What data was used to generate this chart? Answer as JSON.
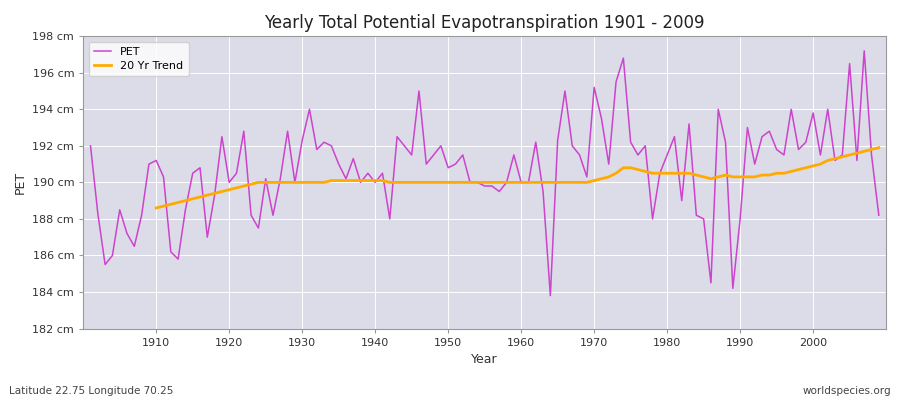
{
  "title": "Yearly Total Potential Evapotranspiration 1901 - 2009",
  "ylabel": "PET",
  "xlabel": "Year",
  "lat_lon_label": "Latitude 22.75 Longitude 70.25",
  "source_label": "worldspecies.org",
  "pet_color": "#cc44cc",
  "trend_color": "#ffaa00",
  "bg_color": "#dcdce8",
  "fig_bg_color": "#ffffff",
  "ylim": [
    182,
    198
  ],
  "yticks": [
    182,
    184,
    186,
    188,
    190,
    192,
    194,
    196,
    198
  ],
  "years": [
    1901,
    1902,
    1903,
    1904,
    1905,
    1906,
    1907,
    1908,
    1909,
    1910,
    1911,
    1912,
    1913,
    1914,
    1915,
    1916,
    1917,
    1918,
    1919,
    1920,
    1921,
    1922,
    1923,
    1924,
    1925,
    1926,
    1927,
    1928,
    1929,
    1930,
    1931,
    1932,
    1933,
    1934,
    1935,
    1936,
    1937,
    1938,
    1939,
    1940,
    1941,
    1942,
    1943,
    1944,
    1945,
    1946,
    1947,
    1948,
    1949,
    1950,
    1951,
    1952,
    1953,
    1954,
    1955,
    1956,
    1957,
    1958,
    1959,
    1960,
    1961,
    1962,
    1963,
    1964,
    1965,
    1966,
    1967,
    1968,
    1969,
    1970,
    1971,
    1972,
    1973,
    1974,
    1975,
    1976,
    1977,
    1978,
    1979,
    1980,
    1981,
    1982,
    1983,
    1984,
    1985,
    1986,
    1987,
    1988,
    1989,
    1990,
    1991,
    1992,
    1993,
    1994,
    1995,
    1996,
    1997,
    1998,
    1999,
    2000,
    2001,
    2002,
    2003,
    2004,
    2005,
    2006,
    2007,
    2008,
    2009
  ],
  "pet_values": [
    192.0,
    188.3,
    185.5,
    186.0,
    188.5,
    187.2,
    186.5,
    188.2,
    191.0,
    191.2,
    190.3,
    186.2,
    185.8,
    188.5,
    190.5,
    190.8,
    187.0,
    189.3,
    192.5,
    190.0,
    190.5,
    192.8,
    188.2,
    187.5,
    190.2,
    188.2,
    190.2,
    192.8,
    190.0,
    192.3,
    194.0,
    191.8,
    192.2,
    192.0,
    191.0,
    190.2,
    191.3,
    190.0,
    190.5,
    190.0,
    190.5,
    188.0,
    192.5,
    192.0,
    191.5,
    195.0,
    191.0,
    191.5,
    192.0,
    190.8,
    191.0,
    191.5,
    190.0,
    190.0,
    189.8,
    189.8,
    189.5,
    190.0,
    191.5,
    190.0,
    190.0,
    192.2,
    189.5,
    183.8,
    192.3,
    195.0,
    192.0,
    191.5,
    190.3,
    195.2,
    193.5,
    191.0,
    195.5,
    196.8,
    192.2,
    191.5,
    192.0,
    188.0,
    190.5,
    191.5,
    192.5,
    189.0,
    193.2,
    188.2,
    188.0,
    184.5,
    194.0,
    192.2,
    184.2,
    188.0,
    193.0,
    191.0,
    192.5,
    192.8,
    191.8,
    191.5,
    194.0,
    191.8,
    192.2,
    193.8,
    191.5,
    194.0,
    191.2,
    191.5,
    196.5,
    191.2,
    197.2,
    191.5,
    188.2
  ],
  "trend_values": [
    null,
    null,
    null,
    null,
    null,
    null,
    null,
    null,
    null,
    188.6,
    188.7,
    188.8,
    188.9,
    189.0,
    189.1,
    189.2,
    189.3,
    189.4,
    189.5,
    189.6,
    189.7,
    189.8,
    189.9,
    190.0,
    190.0,
    190.0,
    190.0,
    190.0,
    190.0,
    190.0,
    190.0,
    190.0,
    190.0,
    190.1,
    190.1,
    190.1,
    190.1,
    190.1,
    190.1,
    190.1,
    190.1,
    190.0,
    190.0,
    190.0,
    190.0,
    190.0,
    190.0,
    190.0,
    190.0,
    190.0,
    190.0,
    190.0,
    190.0,
    190.0,
    190.0,
    190.0,
    190.0,
    190.0,
    190.0,
    190.0,
    190.0,
    190.0,
    190.0,
    190.0,
    190.0,
    190.0,
    190.0,
    190.0,
    190.0,
    190.1,
    190.2,
    190.3,
    190.5,
    190.8,
    190.8,
    190.7,
    190.6,
    190.5,
    190.5,
    190.5,
    190.5,
    190.5,
    190.5,
    190.4,
    190.3,
    190.2,
    190.3,
    190.4,
    190.3,
    190.3,
    190.3,
    190.3,
    190.4,
    190.4,
    190.5,
    190.5,
    190.6,
    190.7,
    190.8,
    190.9,
    191.0,
    191.2,
    191.3,
    191.4,
    191.5,
    191.6,
    191.7,
    191.8,
    191.9
  ]
}
